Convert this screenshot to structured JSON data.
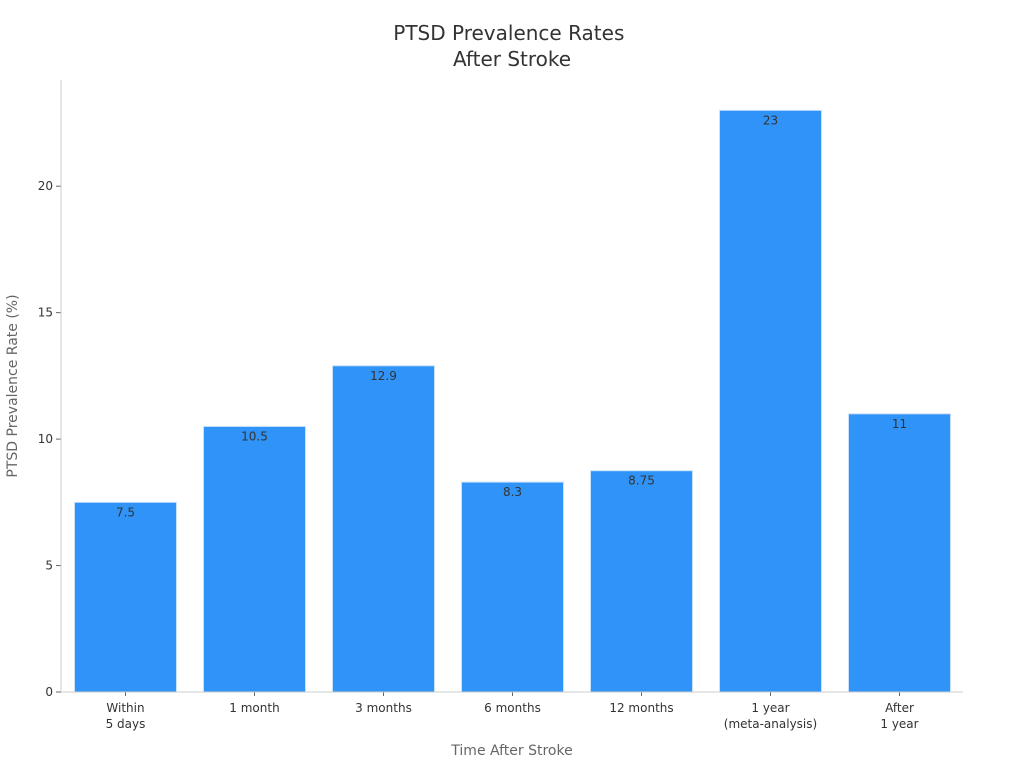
{
  "chart_data": {
    "type": "bar",
    "title_lines": [
      "PTSD Prevalence Rates",
      "After Stroke"
    ],
    "xlabel": "Time After Stroke",
    "ylabel": "PTSD Prevalence Rate (%)",
    "categories": [
      [
        "Within",
        "5 days"
      ],
      [
        "1 month"
      ],
      [
        "3 months"
      ],
      [
        "6 months"
      ],
      [
        "12 months"
      ],
      [
        "1 year",
        "(meta-analysis)"
      ],
      [
        "After",
        "1 year"
      ]
    ],
    "values": [
      7.5,
      10.5,
      12.9,
      8.3,
      8.75,
      23,
      11
    ],
    "value_labels": [
      "7.5",
      "10.5",
      "12.9",
      "8.3",
      "8.75",
      "23",
      "11"
    ],
    "yticks": [
      0,
      5,
      10,
      15,
      20
    ],
    "ytick_labels": [
      "0",
      "5",
      "10",
      "15",
      "20"
    ],
    "ylim": [
      0,
      24.2
    ],
    "grid": false,
    "bar_color": "#2f93f8"
  }
}
